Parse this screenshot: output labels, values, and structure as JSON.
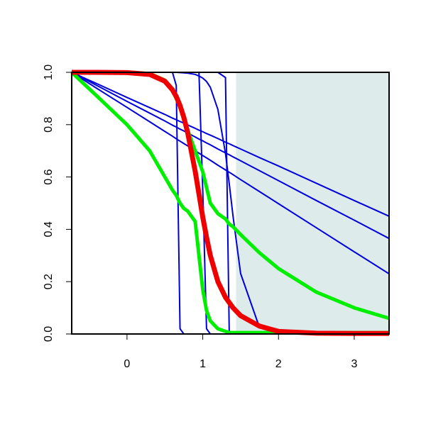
{
  "chart_data": {
    "type": "line",
    "x": [
      -0.73,
      -0.4,
      0,
      0.3,
      0.5,
      0.6,
      0.65,
      0.7,
      0.75,
      0.8,
      0.9,
      0.95,
      1,
      1.05,
      1.1,
      1.2,
      1.3,
      1.35,
      1.4,
      1.5,
      1.75,
      2,
      2.5,
      3,
      3.46
    ],
    "series": [
      {
        "color": "#0000dd",
        "width": 2,
        "values": [
          1,
          0.957,
          0.904,
          0.865,
          0.839,
          0.825,
          0.819,
          0.812,
          0.806,
          0.799,
          0.786,
          0.779,
          0.773,
          0.766,
          0.76,
          0.747,
          0.733,
          0.727,
          0.72,
          0.707,
          0.674,
          0.642,
          0.576,
          0.51,
          0.45
        ]
      },
      {
        "color": "#0000dd",
        "width": 2,
        "values": [
          1,
          0.95,
          0.889,
          0.844,
          0.814,
          0.798,
          0.791,
          0.783,
          0.776,
          0.768,
          0.753,
          0.745,
          0.738,
          0.73,
          0.723,
          0.707,
          0.692,
          0.685,
          0.677,
          0.662,
          0.624,
          0.586,
          0.51,
          0.435,
          0.365
        ]
      },
      {
        "color": "#0000dd",
        "width": 2,
        "values": [
          1,
          0.939,
          0.866,
          0.811,
          0.774,
          0.756,
          0.746,
          0.737,
          0.728,
          0.719,
          0.7,
          0.691,
          0.682,
          0.673,
          0.664,
          0.645,
          0.627,
          0.618,
          0.609,
          0.59,
          0.544,
          0.498,
          0.406,
          0.314,
          0.23
        ]
      },
      {
        "color": "#0000dd",
        "width": 2,
        "values": [
          1,
          1,
          1,
          1,
          1,
          1,
          0.95,
          0.02,
          0,
          0,
          0,
          0,
          0,
          0,
          0,
          0,
          0,
          0,
          0,
          0,
          0,
          0,
          0,
          0,
          0
        ]
      },
      {
        "color": "#0000dd",
        "width": 2,
        "values": [
          1,
          1,
          1,
          1,
          1,
          1,
          1,
          1,
          1,
          1,
          1,
          1,
          0.55,
          0.02,
          0,
          0,
          0,
          0,
          0,
          0,
          0,
          0,
          0,
          0,
          0
        ]
      },
      {
        "color": "#0000dd",
        "width": 2,
        "values": [
          1,
          1,
          1,
          1,
          1,
          1,
          1,
          1,
          1,
          1,
          1,
          1,
          1,
          1,
          1,
          1,
          0.98,
          0,
          0,
          0,
          0,
          0,
          0,
          0,
          0
        ]
      },
      {
        "color": "#0000dd",
        "width": 2,
        "values": [
          1,
          1,
          1,
          1,
          1,
          1,
          1,
          0.999,
          0.998,
          0.997,
          0.992,
          0.986,
          0.978,
          0.965,
          0.943,
          0.858,
          0.69,
          0.574,
          0.45,
          0.231,
          0.024,
          0.002,
          0,
          0,
          0
        ]
      },
      {
        "color": "#00ee00",
        "width": 5,
        "values": [
          1,
          0.91,
          0.8,
          0.7,
          0.6,
          0.55,
          0.53,
          0.5,
          0.48,
          0.47,
          0.43,
          0.3,
          0.17,
          0.09,
          0.05,
          0.02,
          0.01,
          0.005,
          0.005,
          0.005,
          0.005,
          0.005,
          0.005,
          0.005,
          0.005
        ]
      },
      {
        "color": "#00ee00",
        "width": 5,
        "values": [
          1,
          1,
          1,
          0.995,
          0.97,
          0.93,
          0.9,
          0.87,
          0.83,
          0.78,
          0.7,
          0.66,
          0.62,
          0.56,
          0.5,
          0.46,
          0.44,
          0.42,
          0.41,
          0.38,
          0.31,
          0.25,
          0.16,
          0.1,
          0.06
        ]
      },
      {
        "color": "#ee0000",
        "width": 7,
        "values": [
          1,
          1,
          0.999,
          0.992,
          0.966,
          0.933,
          0.908,
          0.873,
          0.828,
          0.771,
          0.622,
          0.535,
          0.447,
          0.37,
          0.3,
          0.2,
          0.14,
          0.12,
          0.1,
          0.07,
          0.03,
          0.01,
          0.003,
          0.002,
          0.002
        ]
      }
    ],
    "shaded_region": {
      "xlim": [
        1.44,
        3.46
      ],
      "color": "#deebeb"
    },
    "xlim": [
      -0.73,
      3.46
    ],
    "ylim": [
      0,
      1
    ],
    "xticks": [
      0,
      1,
      2,
      3
    ],
    "yticks": [
      {
        "value": 0,
        "label": "0.0"
      },
      0.2,
      0.4,
      0.6,
      0.8,
      {
        "value": 1,
        "label": "1.0"
      }
    ]
  }
}
